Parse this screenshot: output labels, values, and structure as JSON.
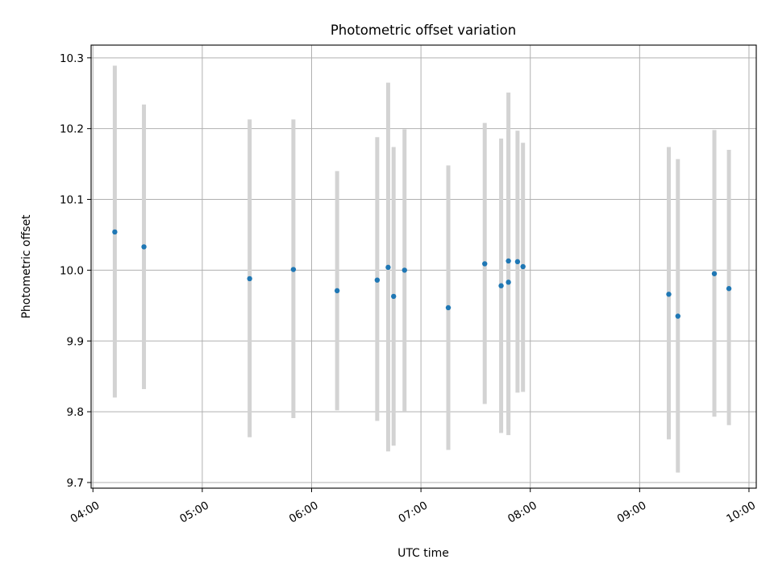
{
  "chart_data": {
    "type": "scatter",
    "title": "Photometric offset variation",
    "xlabel": "UTC time",
    "ylabel": "Photometric offset",
    "x_type": "time",
    "xlim": [
      "03:59",
      "10:04"
    ],
    "ylim": [
      9.692,
      10.318
    ],
    "x_ticks": [
      "04:00",
      "05:00",
      "06:00",
      "07:00",
      "08:00",
      "09:00",
      "10:00"
    ],
    "y_ticks": [
      9.7,
      9.8,
      9.9,
      10.0,
      10.1,
      10.2,
      10.3
    ],
    "y_tick_labels": [
      "9.7",
      "9.8",
      "9.9",
      "10.0",
      "10.1",
      "10.2",
      "10.3"
    ],
    "grid": true,
    "point_color": "#1f77b4",
    "errorbar_color": "#d3d3d3",
    "points": [
      {
        "t": "04:12",
        "y": 10.054,
        "ylow": 9.82,
        "yhigh": 10.289
      },
      {
        "t": "04:28",
        "y": 10.033,
        "ylow": 9.832,
        "yhigh": 10.234
      },
      {
        "t": "05:26",
        "y": 9.988,
        "ylow": 9.764,
        "yhigh": 10.213
      },
      {
        "t": "05:50",
        "y": 10.001,
        "ylow": 9.791,
        "yhigh": 10.213
      },
      {
        "t": "06:14",
        "y": 9.971,
        "ylow": 9.802,
        "yhigh": 10.14
      },
      {
        "t": "06:36",
        "y": 9.986,
        "ylow": 9.787,
        "yhigh": 10.188
      },
      {
        "t": "06:42",
        "y": 10.004,
        "ylow": 9.744,
        "yhigh": 10.265
      },
      {
        "t": "06:45",
        "y": 9.963,
        "ylow": 9.752,
        "yhigh": 10.174
      },
      {
        "t": "06:51",
        "y": 10.0,
        "ylow": 9.801,
        "yhigh": 10.199
      },
      {
        "t": "07:15",
        "y": 9.947,
        "ylow": 9.746,
        "yhigh": 10.148
      },
      {
        "t": "07:35",
        "y": 10.009,
        "ylow": 9.811,
        "yhigh": 10.208
      },
      {
        "t": "07:44",
        "y": 9.978,
        "ylow": 9.77,
        "yhigh": 10.186
      },
      {
        "t": "07:48",
        "y": 10.013,
        "ylow": 9.775,
        "yhigh": 10.251
      },
      {
        "t": "07:48",
        "y": 9.983,
        "ylow": 9.767,
        "yhigh": 10.197
      },
      {
        "t": "07:53",
        "y": 10.012,
        "ylow": 9.827,
        "yhigh": 10.197
      },
      {
        "t": "07:56",
        "y": 10.005,
        "ylow": 9.828,
        "yhigh": 10.18
      },
      {
        "t": "09:16",
        "y": 9.966,
        "ylow": 9.761,
        "yhigh": 10.174
      },
      {
        "t": "09:21",
        "y": 9.935,
        "ylow": 9.714,
        "yhigh": 10.157
      },
      {
        "t": "09:41",
        "y": 9.995,
        "ylow": 9.793,
        "yhigh": 10.198
      },
      {
        "t": "09:49",
        "y": 9.974,
        "ylow": 9.781,
        "yhigh": 10.17
      }
    ]
  }
}
